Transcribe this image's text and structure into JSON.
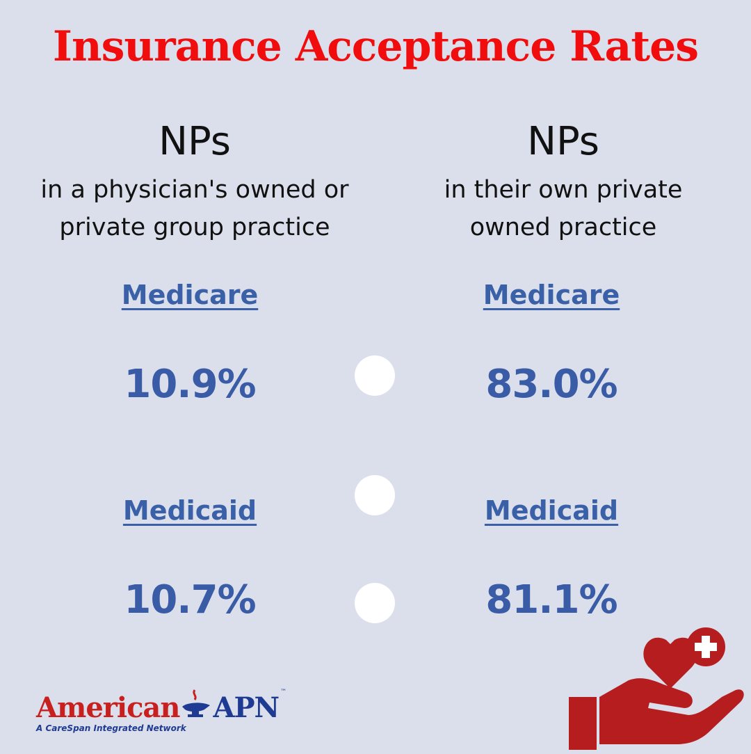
{
  "title": "Insurance Acceptance Rates",
  "columns": [
    {
      "heading": "NPs",
      "description_line1": "in a physician's owned or",
      "description_line2": "private group practice",
      "medicare_label": "Medicare",
      "medicare_rate": "10.9%",
      "medicaid_label": "Medicaid",
      "medicaid_rate": "10.7%"
    },
    {
      "heading": "NPs",
      "description_line1": "in their own private",
      "description_line2": "owned practice",
      "medicare_label": "Medicare",
      "medicare_rate": "83.0%",
      "medicaid_label": "Medicaid",
      "medicaid_rate": "81.1%"
    }
  ],
  "logo": {
    "brand_part1": "American",
    "brand_part2": "APN",
    "trademark": "™",
    "tagline": "A CareSpan Integrated Network"
  },
  "colors": {
    "background": "#dadfeb",
    "title": "#f10d0d",
    "accent_blue": "#3a5ba6",
    "icon_red": "#b51d1f"
  },
  "icons": [
    "lamp-icon",
    "hand-heart-plus-icon"
  ]
}
